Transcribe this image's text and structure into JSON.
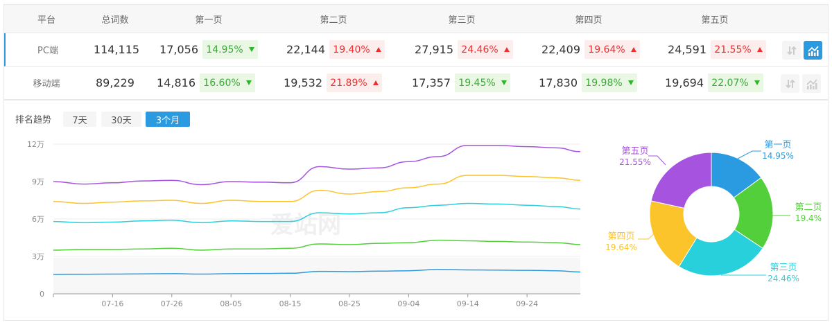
{
  "table": {
    "headers": [
      "平台",
      "总词数",
      "第一页",
      "第二页",
      "第三页",
      "第四页",
      "第五页"
    ],
    "rows": [
      {
        "platform": "PC端",
        "total": "114,115",
        "pages": [
          {
            "count": "17,056",
            "pct": "14.95%",
            "dir": "down"
          },
          {
            "count": "22,144",
            "pct": "19.40%",
            "dir": "up"
          },
          {
            "count": "27,915",
            "pct": "24.46%",
            "dir": "up"
          },
          {
            "count": "22,409",
            "pct": "19.64%",
            "dir": "up"
          },
          {
            "count": "24,591",
            "pct": "21.55%",
            "dir": "up"
          }
        ],
        "chart_active": true
      },
      {
        "platform": "移动端",
        "total": "89,229",
        "pages": [
          {
            "count": "14,816",
            "pct": "16.60%",
            "dir": "down"
          },
          {
            "count": "19,532",
            "pct": "21.89%",
            "dir": "up"
          },
          {
            "count": "17,357",
            "pct": "19.45%",
            "dir": "down"
          },
          {
            "count": "17,830",
            "pct": "19.98%",
            "dir": "down"
          },
          {
            "count": "19,694",
            "pct": "22.07%",
            "dir": "down"
          }
        ],
        "chart_active": false
      }
    ]
  },
  "trend": {
    "title": "排名趋势",
    "ranges": [
      {
        "label": "7天",
        "active": false
      },
      {
        "label": "30天",
        "active": false
      },
      {
        "label": "3个月",
        "active": true
      }
    ],
    "watermark": "爱站网"
  },
  "colors": {
    "accent": "#2a9be0",
    "up": "#ee2f2f",
    "down": "#3aaa35",
    "p1": "#2a9be0",
    "p2": "#52cf3a",
    "p3": "#28d0dc",
    "p4": "#fbc42a",
    "p5": "#a653df"
  },
  "chart_data": [
    {
      "type": "line",
      "x": [
        "07-06",
        "07-11",
        "07-16",
        "07-21",
        "07-26",
        "07-31",
        "08-05",
        "08-10",
        "08-15",
        "08-20",
        "08-25",
        "08-30",
        "09-04",
        "09-09",
        "09-14",
        "09-19",
        "09-24",
        "09-29",
        "10-03"
      ],
      "xticks": [
        "07-16",
        "07-26",
        "08-05",
        "08-15",
        "08-25",
        "09-04",
        "09-14",
        "09-24"
      ],
      "yticks": [
        "0",
        "3万",
        "6万",
        "9万",
        "12万"
      ],
      "ylim": [
        0,
        120000
      ],
      "grid": true,
      "series": [
        {
          "color": "#a653df",
          "values": [
            90000,
            88000,
            89000,
            90500,
            91000,
            87500,
            90000,
            89500,
            89000,
            102000,
            100000,
            101000,
            106000,
            110000,
            119000,
            119000,
            118000,
            117000,
            114000
          ]
        },
        {
          "color": "#fbc42a",
          "values": [
            74000,
            72500,
            73500,
            74500,
            75000,
            72500,
            75000,
            74000,
            74000,
            83000,
            80000,
            82000,
            85000,
            88000,
            95000,
            95000,
            94000,
            93000,
            91000
          ]
        },
        {
          "color": "#28d0dc",
          "values": [
            58000,
            57000,
            57500,
            58500,
            59000,
            57000,
            58500,
            58000,
            58000,
            65000,
            64000,
            65000,
            69000,
            71000,
            72500,
            72000,
            71000,
            70000,
            68000
          ]
        },
        {
          "color": "#52cf3a",
          "values": [
            35000,
            35500,
            35500,
            36000,
            36500,
            35000,
            36000,
            36000,
            36500,
            40000,
            39500,
            40500,
            41000,
            43000,
            42500,
            42000,
            41500,
            41000,
            39500
          ]
        },
        {
          "color": "#2a9be0",
          "values": [
            15500,
            15700,
            15800,
            16000,
            16200,
            15800,
            16200,
            16300,
            16500,
            18000,
            17800,
            18200,
            18500,
            19500,
            19200,
            19000,
            18800,
            18500,
            17500
          ]
        }
      ]
    },
    {
      "type": "pie",
      "donut": true,
      "slices": [
        {
          "label": "第一页",
          "value": 14.95,
          "text": "14.95%",
          "color": "#2a9be0"
        },
        {
          "label": "第二页",
          "value": 19.4,
          "text": "19.4%",
          "color": "#52cf3a"
        },
        {
          "label": "第三页",
          "value": 24.46,
          "text": "24.46%",
          "color": "#28d0dc"
        },
        {
          "label": "第四页",
          "value": 19.64,
          "text": "19.64%",
          "color": "#fbc42a"
        },
        {
          "label": "第五页",
          "value": 21.55,
          "text": "21.55%",
          "color": "#a653df"
        }
      ]
    }
  ]
}
